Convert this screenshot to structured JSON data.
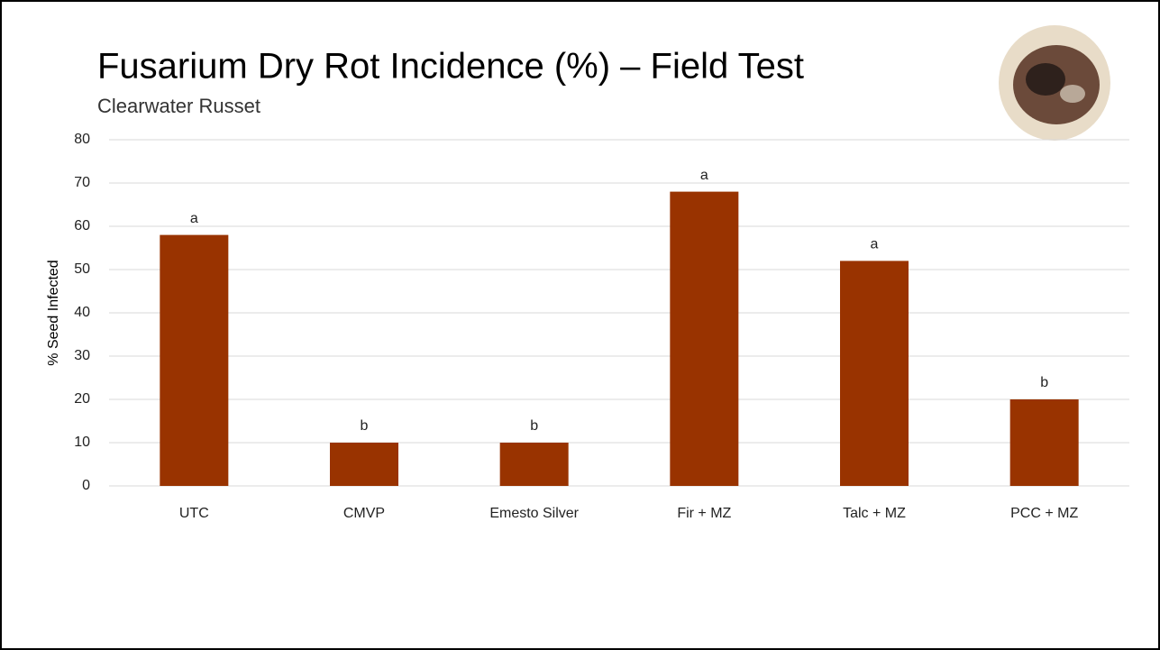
{
  "chart_data": {
    "type": "bar",
    "title": "Fusarium Dry Rot Incidence (%) – Field Test",
    "subtitle": "Clearwater Russet",
    "y_label": "% Seed Infected",
    "categories": [
      "UTC",
      "CMVP",
      "Emesto Silver",
      "Fir + MZ",
      "Talc + MZ",
      "PCC + MZ"
    ],
    "values": [
      58,
      10,
      10,
      68,
      52,
      20
    ],
    "letters": [
      "a",
      "b",
      "b",
      "a",
      "a",
      "b"
    ],
    "color": "#993300",
    "ylim": [
      0,
      80
    ],
    "yticks": [
      0,
      10,
      20,
      30,
      40,
      50,
      60,
      70,
      80
    ],
    "grid": true
  }
}
